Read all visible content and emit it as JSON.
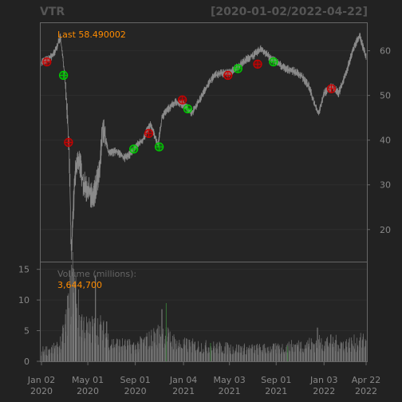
{
  "header": {
    "symbol": "VTR",
    "date_range": "[2020-01-02/2022-04-22]"
  },
  "price_panel": {
    "last_label": "Last 58.490002"
  },
  "volume_panel": {
    "label": "Volume (millions):",
    "last_value": "3,644,700"
  },
  "colors": {
    "background": "#222222",
    "panel_border": "#666666",
    "grid": "#2e2e2e",
    "text": "#888888",
    "accent_orange": "#ff8c00",
    "price_line": "#8a8a8a",
    "sell_marker": "#cc0000",
    "buy_marker": "#00cc00"
  },
  "chart_data": {
    "type": "line",
    "title": "VTR",
    "subtitle": "[2020-01-02/2022-04-22]",
    "x_range": [
      "2020-01-02",
      "2022-04-22"
    ],
    "x_ticks": [
      {
        "date": "2020-01-02",
        "label": [
          "Jan 02",
          "2020"
        ]
      },
      {
        "date": "2020-05-01",
        "label": [
          "May 01",
          "2020"
        ]
      },
      {
        "date": "2020-09-01",
        "label": [
          "Sep 01",
          "2020"
        ]
      },
      {
        "date": "2021-01-04",
        "label": [
          "Jan 04",
          "2021"
        ]
      },
      {
        "date": "2021-05-03",
        "label": [
          "May 03",
          "2021"
        ]
      },
      {
        "date": "2021-09-01",
        "label": [
          "Sep 01",
          "2021"
        ]
      },
      {
        "date": "2022-01-03",
        "label": [
          "Jan 03",
          "2022"
        ]
      },
      {
        "date": "2022-04-22",
        "label": [
          "Apr 22",
          "2022"
        ]
      }
    ],
    "price": {
      "ylim": [
        13,
        66
      ],
      "y_ticks": [
        20,
        30,
        40,
        50,
        60
      ],
      "last": 58.490002,
      "points": [
        [
          "2020-01-02",
          57.5
        ],
        [
          "2020-01-20",
          58.0
        ],
        [
          "2020-02-05",
          59.5
        ],
        [
          "2020-02-20",
          63.0
        ],
        [
          "2020-03-02",
          55.0
        ],
        [
          "2020-03-09",
          46.0
        ],
        [
          "2020-03-13",
          38.0
        ],
        [
          "2020-03-16",
          30.0
        ],
        [
          "2020-03-18",
          18.0
        ],
        [
          "2020-03-20",
          15.0
        ],
        [
          "2020-03-24",
          24.0
        ],
        [
          "2020-03-30",
          33.0
        ],
        [
          "2020-04-08",
          36.0
        ],
        [
          "2020-04-20",
          30.0
        ],
        [
          "2020-05-01",
          29.0
        ],
        [
          "2020-05-14",
          27.0
        ],
        [
          "2020-06-01",
          33.0
        ],
        [
          "2020-06-08",
          43.0
        ],
        [
          "2020-06-25",
          37.0
        ],
        [
          "2020-07-15",
          37.5
        ],
        [
          "2020-08-05",
          36.0
        ],
        [
          "2020-08-20",
          37.0
        ],
        [
          "2020-09-01",
          38.5
        ],
        [
          "2020-09-20",
          40.0
        ],
        [
          "2020-10-10",
          43.5
        ],
        [
          "2020-10-30",
          39.0
        ],
        [
          "2020-11-09",
          45.0
        ],
        [
          "2020-11-25",
          47.0
        ],
        [
          "2020-12-15",
          48.5
        ],
        [
          "2021-01-04",
          48.0
        ],
        [
          "2021-01-25",
          46.0
        ],
        [
          "2021-02-15",
          49.0
        ],
        [
          "2021-03-05",
          52.0
        ],
        [
          "2021-03-25",
          54.5
        ],
        [
          "2021-04-15",
          55.0
        ],
        [
          "2021-05-03",
          55.0
        ],
        [
          "2021-05-25",
          56.5
        ],
        [
          "2021-06-15",
          58.0
        ],
        [
          "2021-07-05",
          59.0
        ],
        [
          "2021-07-25",
          60.5
        ],
        [
          "2021-08-15",
          58.5
        ],
        [
          "2021-09-01",
          57.5
        ],
        [
          "2021-09-25",
          56.0
        ],
        [
          "2021-10-15",
          55.5
        ],
        [
          "2021-11-05",
          54.5
        ],
        [
          "2021-11-25",
          52.0
        ],
        [
          "2021-12-10",
          48.0
        ],
        [
          "2021-12-20",
          46.0
        ],
        [
          "2022-01-03",
          50.5
        ],
        [
          "2022-01-25",
          52.0
        ],
        [
          "2022-02-10",
          50.5
        ],
        [
          "2022-03-01",
          55.0
        ],
        [
          "2022-03-20",
          60.5
        ],
        [
          "2022-04-05",
          63.5
        ],
        [
          "2022-04-22",
          58.49
        ]
      ]
    },
    "signals": {
      "sell": [
        [
          "2020-01-16",
          57.5
        ],
        [
          "2020-03-12",
          39.5
        ],
        [
          "2020-10-06",
          41.5
        ],
        [
          "2021-01-01",
          49.0
        ],
        [
          "2021-04-29",
          54.5
        ],
        [
          "2021-07-15",
          57.0
        ],
        [
          "2022-01-22",
          51.5
        ]
      ],
      "buy": [
        [
          "2020-02-28",
          54.5
        ],
        [
          "2020-08-28",
          38.0
        ],
        [
          "2020-11-02",
          38.5
        ],
        [
          "2021-01-15",
          47.0
        ],
        [
          "2021-05-25",
          56.0
        ],
        [
          "2021-08-25",
          57.5
        ]
      ]
    },
    "volume": {
      "ylabel": "Volume (millions):",
      "ylim": [
        0,
        16
      ],
      "y_ticks": [
        0,
        5,
        10,
        15
      ],
      "last": 3644700,
      "profile": [
        [
          "2020-01-02",
          1.8
        ],
        [
          "2020-02-15",
          2.4
        ],
        [
          "2020-03-01",
          5.0
        ],
        [
          "2020-03-15",
          11.0
        ],
        [
          "2020-03-25",
          15.0
        ],
        [
          "2020-04-10",
          7.5
        ],
        [
          "2020-05-01",
          5.5
        ],
        [
          "2020-06-01",
          6.0
        ],
        [
          "2020-07-01",
          3.2
        ],
        [
          "2020-09-01",
          2.6
        ],
        [
          "2020-11-10",
          5.0
        ],
        [
          "2020-12-20",
          3.0
        ],
        [
          "2021-03-01",
          2.6
        ],
        [
          "2021-06-01",
          2.2
        ],
        [
          "2021-09-01",
          2.2
        ],
        [
          "2021-11-01",
          2.8
        ],
        [
          "2022-01-10",
          3.4
        ],
        [
          "2022-03-01",
          3.0
        ],
        [
          "2022-04-22",
          3.6
        ]
      ],
      "spikes": [
        [
          "2020-03-23",
          15.2
        ],
        [
          "2020-03-30",
          12.0
        ],
        [
          "2020-05-21",
          14.0
        ],
        [
          "2020-11-09",
          8.5
        ],
        [
          "2020-06-19",
          6.5
        ],
        [
          "2021-12-17",
          5.5
        ]
      ]
    }
  }
}
